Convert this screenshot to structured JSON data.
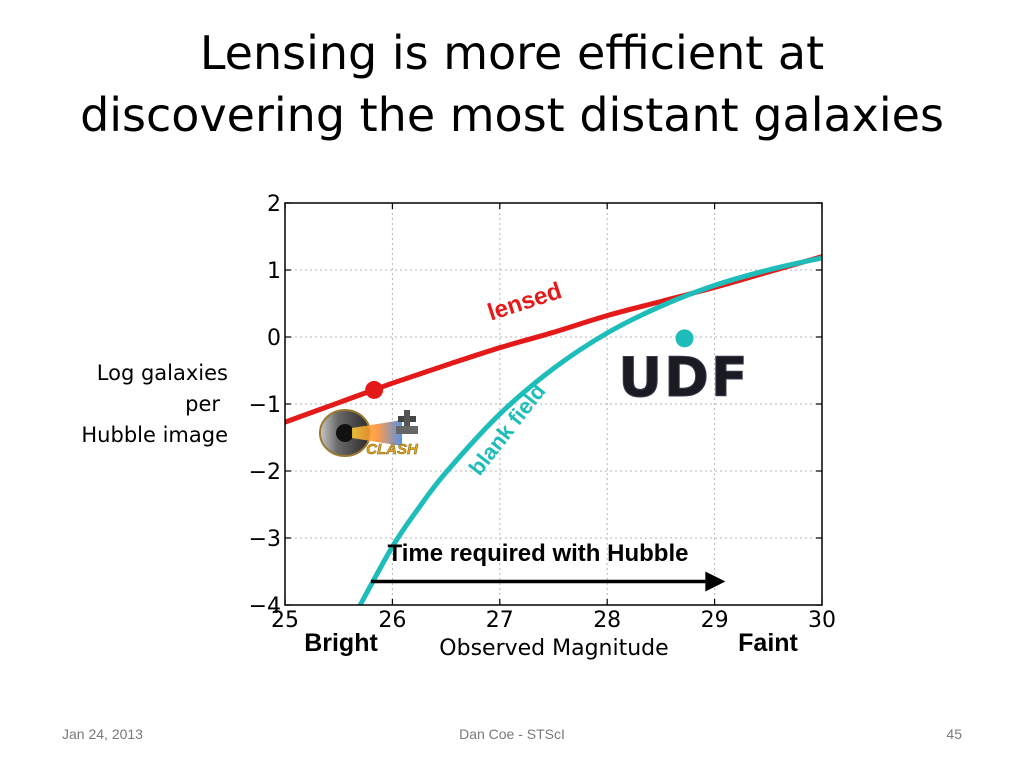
{
  "slide": {
    "title_line1": "Lensing is more efficient at",
    "title_line2": "discovering the most distant galaxies",
    "footer_date": "Jan 24, 2013",
    "footer_author": "Dan Coe - STScI",
    "page_number": "45"
  },
  "chart_data": {
    "type": "line",
    "xlabel": "Observed Magnitude",
    "ylabel_lines": [
      "Log galaxies",
      "per",
      "Hubble image"
    ],
    "xlim": [
      25,
      30
    ],
    "ylim": [
      -4,
      2
    ],
    "x_ticks": [
      25,
      26,
      27,
      28,
      29,
      30
    ],
    "y_ticks": [
      2,
      1,
      0,
      -1,
      -2,
      -3,
      -4
    ],
    "x_tick_labels": [
      "25",
      "26",
      "27",
      "28",
      "29",
      "30"
    ],
    "y_tick_labels": [
      "2",
      "1",
      "0",
      "−1",
      "−2",
      "−3",
      "−4"
    ],
    "grid": true,
    "series": [
      {
        "name": "lensed",
        "color": "#e41a1a",
        "x": [
          25,
          25.5,
          26,
          26.5,
          27,
          27.5,
          28,
          28.5,
          29,
          29.5,
          30
        ],
        "y": [
          -1.27,
          -0.98,
          -0.69,
          -0.42,
          -0.16,
          0.07,
          0.32,
          0.53,
          0.74,
          0.97,
          1.2
        ]
      },
      {
        "name": "blank field",
        "color": "#1fbdb9",
        "x": [
          25.7,
          26,
          26.25,
          26.5,
          27,
          27.5,
          28,
          28.5,
          29,
          29.5,
          30
        ],
        "y": [
          -4.0,
          -3.13,
          -2.54,
          -2.02,
          -1.15,
          -0.47,
          0.06,
          0.46,
          0.77,
          1.0,
          1.18
        ]
      }
    ],
    "points": [
      {
        "name": "CLASH",
        "x": 25.83,
        "y": -0.79,
        "color": "#e41a1a"
      },
      {
        "name": "UDF",
        "x": 28.72,
        "y": -0.02,
        "color": "#1fbdb9"
      }
    ],
    "annotations": {
      "lensed_label": "lensed",
      "blank_label": "blank field",
      "arrow_label": "Time required with Hubble",
      "bright_label": "Bright",
      "faint_label": "Faint",
      "udf_logo": "UDF",
      "clash_logo": "CLASH"
    },
    "arrow": {
      "x_start": 25.8,
      "x_end": 29.1,
      "y": -3.65
    }
  }
}
